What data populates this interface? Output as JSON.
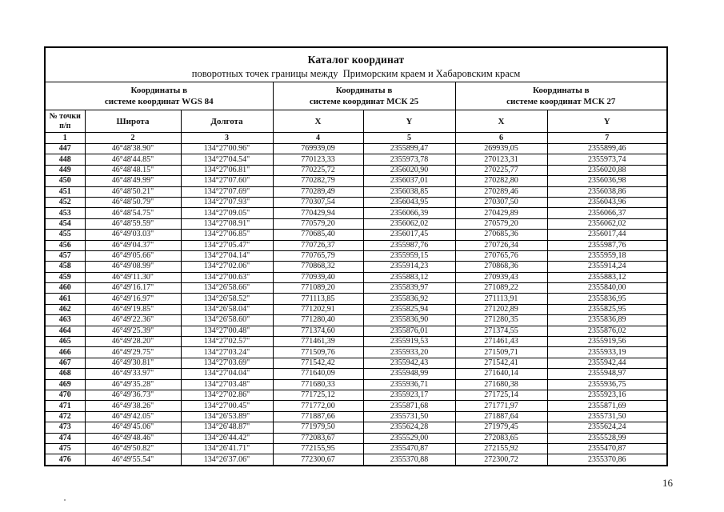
{
  "page": {
    "number": "16"
  },
  "table": {
    "title": "Каталог координат",
    "subtitle": "поворотных точек границы между  Приморским краем и Хабаровским красм",
    "point_col_header": {
      "line1": "№ точки",
      "line2": "п/п"
    },
    "groups": [
      {
        "line1": "Координаты в",
        "line2": "системе координат WGS 84"
      },
      {
        "line1": "Координаты в",
        "line2": "системе координат МСК 25"
      },
      {
        "line1": "Координаты в",
        "line2": "системе координат МСК 27"
      }
    ],
    "sub_headers": [
      "Широта",
      "Долгота",
      "X",
      "Y",
      "X",
      "Y"
    ],
    "index_row": [
      "1",
      "2",
      "3",
      "4",
      "5",
      "6",
      "7"
    ],
    "rows": [
      [
        "447",
        "46°48'38.90\"",
        "134°27'00.96\"",
        "769939,09",
        "2355899,47",
        "269939,05",
        "2355899,46"
      ],
      [
        "448",
        "46°48'44.85\"",
        "134°27'04.54\"",
        "770123,33",
        "2355973,78",
        "270123,31",
        "2355973,74"
      ],
      [
        "449",
        "46°48'48.15\"",
        "134°27'06.81\"",
        "770225,72",
        "2356020,90",
        "270225,77",
        "2356020,88"
      ],
      [
        "450",
        "46°48'49.99\"",
        "134°27'07.60\"",
        "770282,79",
        "2356037,01",
        "270282,80",
        "2356036,98"
      ],
      [
        "451",
        "46°48'50.21\"",
        "134°27'07.69\"",
        "770289,49",
        "2356038,85",
        "270289,46",
        "2356038,86"
      ],
      [
        "452",
        "46°48'50.79\"",
        "134°27'07.93\"",
        "770307,54",
        "2356043,95",
        "270307,50",
        "2356043,96"
      ],
      [
        "453",
        "46°48'54.75\"",
        "134°27'09.05\"",
        "770429,94",
        "2356066,39",
        "270429,89",
        "2356066,37"
      ],
      [
        "454",
        "46°48'59.59\"",
        "134°27'08.91\"",
        "770579,20",
        "2356062,02",
        "270579,20",
        "2356062,02"
      ],
      [
        "455",
        "46°49'03.03\"",
        "134°27'06.85\"",
        "770685,40",
        "2356017,45",
        "270685,36",
        "2356017,44"
      ],
      [
        "456",
        "46°49'04.37\"",
        "134°27'05.47\"",
        "770726,37",
        "2355987,76",
        "270726,34",
        "2355987,76"
      ],
      [
        "457",
        "46°49'05.66\"",
        "134°27'04.14\"",
        "770765,79",
        "2355959,15",
        "270765,76",
        "2355959,18"
      ],
      [
        "458",
        "46°49'08.99\"",
        "134°27'02.06\"",
        "770868,32",
        "2355914,23",
        "270868,36",
        "2355914,24"
      ],
      [
        "459",
        "46°49'11.30\"",
        "134°27'00.63\"",
        "770939,40",
        "2355883,12",
        "270939,43",
        "2355883,12"
      ],
      [
        "460",
        "46°49'16.17\"",
        "134°26'58.66\"",
        "771089,20",
        "2355839,97",
        "271089,22",
        "2355840,00"
      ],
      [
        "461",
        "46°49'16.97\"",
        "134°26'58.52\"",
        "771113,85",
        "2355836,92",
        "271113,91",
        "2355836,95"
      ],
      [
        "462",
        "46°49'19.85\"",
        "134°26'58.04\"",
        "771202,91",
        "2355825,94",
        "271202,89",
        "2355825,95"
      ],
      [
        "463",
        "46°49'22.36\"",
        "134°26'58.60\"",
        "771280,40",
        "2355836,90",
        "271280,35",
        "2355836,89"
      ],
      [
        "464",
        "46°49'25.39\"",
        "134°27'00.48\"",
        "771374,60",
        "2355876,01",
        "271374,55",
        "2355876,02"
      ],
      [
        "465",
        "46°49'28.20\"",
        "134°27'02.57\"",
        "771461,39",
        "2355919,53",
        "271461,43",
        "2355919,56"
      ],
      [
        "466",
        "46°49'29.75\"",
        "134°27'03.24\"",
        "771509,76",
        "2355933,20",
        "271509,71",
        "2355933,19"
      ],
      [
        "467",
        "46°49'30.81\"",
        "134°27'03.69\"",
        "771542,42",
        "2355942,43",
        "271542,41",
        "2355942,44"
      ],
      [
        "468",
        "46°49'33.97\"",
        "134°27'04.04\"",
        "771640,09",
        "2355948,99",
        "271640,14",
        "2355948,97"
      ],
      [
        "469",
        "46°49'35.28\"",
        "134°27'03.48\"",
        "771680,33",
        "2355936,71",
        "271680,38",
        "2355936,75"
      ],
      [
        "470",
        "46°49'36.73\"",
        "134°27'02.86\"",
        "771725,12",
        "2355923,17",
        "271725,14",
        "2355923,16"
      ],
      [
        "471",
        "46°49'38.26\"",
        "134°27'00.45\"",
        "771772,00",
        "2355871,68",
        "271771,97",
        "2355871,69"
      ],
      [
        "472",
        "46°49'42.05\"",
        "134°26'53.89\"",
        "771887,66",
        "2355731,50",
        "271887,64",
        "2355731,50"
      ],
      [
        "473",
        "46°49'45.06\"",
        "134°26'48.87\"",
        "771979,50",
        "2355624,28",
        "271979,45",
        "2355624,24"
      ],
      [
        "474",
        "46°49'48.46\"",
        "134°26'44.42\"",
        "772083,67",
        "2355529,00",
        "272083,65",
        "2355528,99"
      ],
      [
        "475",
        "46°49'50.82\"",
        "134°26'41.71\"",
        "772155,95",
        "2355470,87",
        "272155,92",
        "2355470,87"
      ],
      [
        "476",
        "46°49'55.54\"",
        "134°26'37.06\"",
        "772300,67",
        "2355370,88",
        "272300,72",
        "2355370,86"
      ]
    ]
  }
}
